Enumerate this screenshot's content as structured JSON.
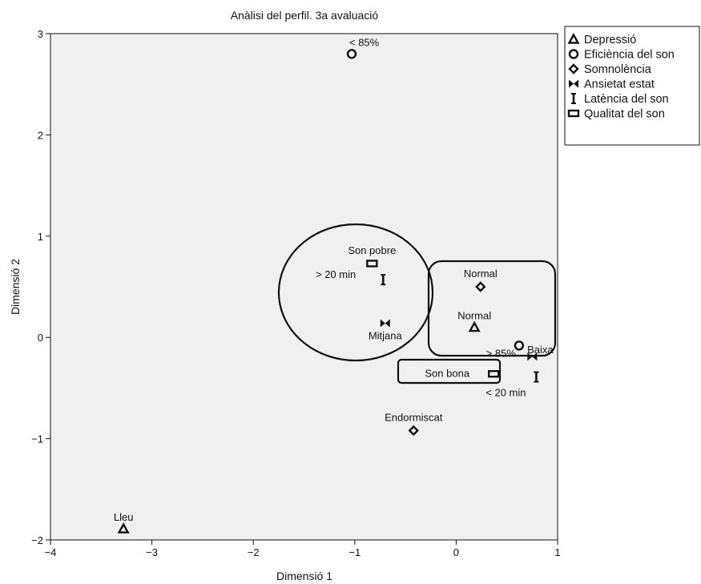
{
  "chart_data": {
    "type": "scatter",
    "title": "Anàlisi del perfil. 3a avaluació",
    "xlabel": "Dimensió 1",
    "ylabel": "Dimensió 2",
    "xlim": [
      -4,
      1
    ],
    "ylim": [
      -2,
      3
    ],
    "xticks": [
      -4,
      -3,
      -2,
      -1,
      0,
      1
    ],
    "yticks": [
      -2,
      -1,
      0,
      1,
      2,
      3
    ],
    "xtick_labels": [
      "−4",
      "−3",
      "−2",
      "−1",
      "0",
      "1"
    ],
    "ytick_labels": [
      "−2",
      "−1",
      "0",
      "1",
      "2",
      "3"
    ],
    "grid": false,
    "background": "#f0f0f0",
    "legend": {
      "placement": "outside-top-right"
    },
    "series": [
      {
        "name": "Depressió",
        "marker": "triangle",
        "points": [
          {
            "x": 0.18,
            "y": 0.1,
            "label": "Normal"
          },
          {
            "x": -3.28,
            "y": -1.89,
            "label": "Lleu"
          }
        ]
      },
      {
        "name": "Eficiència del son",
        "marker": "circle",
        "points": [
          {
            "x": -1.03,
            "y": 2.8,
            "label": "< 85%"
          },
          {
            "x": 0.62,
            "y": -0.08,
            "label": "> 85%"
          }
        ]
      },
      {
        "name": "Somnolència",
        "marker": "diamond",
        "points": [
          {
            "x": 0.24,
            "y": 0.5,
            "label": "Normal"
          },
          {
            "x": -0.42,
            "y": -0.92,
            "label": "Endormiscat"
          }
        ]
      },
      {
        "name": "Ansietat estat",
        "marker": "bowtie",
        "points": [
          {
            "x": -0.7,
            "y": 0.14,
            "label": "Mitjana"
          },
          {
            "x": 0.75,
            "y": -0.19,
            "label": "Baixa"
          }
        ]
      },
      {
        "name": "Latència del son",
        "marker": "ibeam",
        "points": [
          {
            "x": -0.72,
            "y": 0.57,
            "label": "> 20 min"
          },
          {
            "x": 0.79,
            "y": -0.39,
            "label": "< 20 min"
          }
        ]
      },
      {
        "name": "Qualitat del son",
        "marker": "rect",
        "points": [
          {
            "x": -0.83,
            "y": 0.73,
            "label": "Son pobre"
          },
          {
            "x": 0.37,
            "y": -0.36,
            "label": "Son bona"
          }
        ]
      }
    ]
  }
}
